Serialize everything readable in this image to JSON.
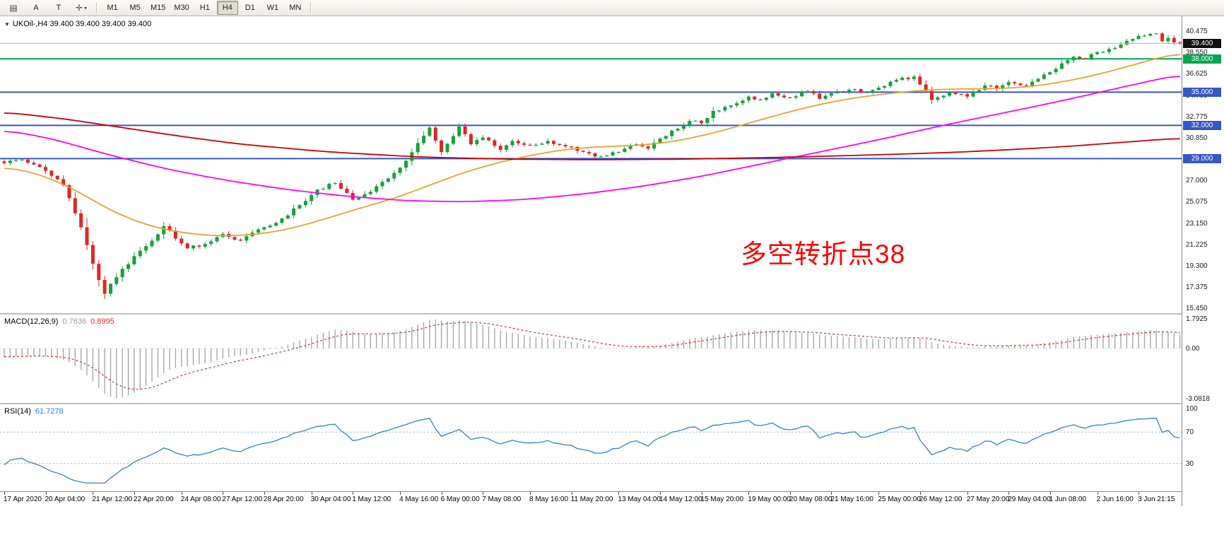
{
  "toolbar": {
    "tools": [
      {
        "type": "icon",
        "name": "chart-list-icon",
        "glyph": "▤"
      },
      {
        "type": "button",
        "name": "font-tool",
        "label": "A"
      },
      {
        "type": "button",
        "name": "text-tool",
        "label": "T"
      },
      {
        "type": "icon_dropdown",
        "name": "crosshair-tool",
        "glyph": "✛",
        "caret": "▾"
      }
    ],
    "timeframes": [
      "M1",
      "M5",
      "M15",
      "M30",
      "H1",
      "H4",
      "D1",
      "W1",
      "MN"
    ],
    "active_timeframe": "H4"
  },
  "chart": {
    "collapse_icon": "▼",
    "symbol_ohlc": "UKOil-,H4 39.400 39.400 39.400 39.400",
    "annotation": {
      "text": "多空转折点38",
      "color": "#ff0000"
    },
    "price_axis_labels": [
      {
        "text": "40.475",
        "price": 40.475
      },
      {
        "text": "38.550",
        "price": 38.55
      },
      {
        "text": "36.625",
        "price": 36.625
      },
      {
        "text": "34.700",
        "price": 34.7
      },
      {
        "text": "32.775",
        "price": 32.775
      },
      {
        "text": "30.850",
        "price": 30.85
      },
      {
        "text": "27.000",
        "price": 27.0
      },
      {
        "text": "25.075",
        "price": 25.075
      },
      {
        "text": "23.150",
        "price": 23.15
      },
      {
        "text": "21.225",
        "price": 21.225
      },
      {
        "text": "19.300",
        "price": 19.3
      },
      {
        "text": "17.375",
        "price": 17.375
      },
      {
        "text": "15.450",
        "price": 15.45
      }
    ],
    "price_tags": [
      {
        "text": "39.400",
        "price": 39.4,
        "bg": "#111111"
      },
      {
        "text": "38.000",
        "price": 38.0,
        "bg": "#00a651"
      },
      {
        "text": "35.000",
        "price": 35.0,
        "bg": "#3556c8"
      },
      {
        "text": "32.000",
        "price": 32.0,
        "bg": "#3556c8"
      },
      {
        "text": "29.000",
        "price": 29.0,
        "bg": "#3556c8"
      }
    ],
    "hlines": [
      {
        "price": 39.4,
        "color": "#9cb6dc",
        "w": 1,
        "current": true
      },
      {
        "price": 38.0,
        "color": "#00a651",
        "w": 2
      },
      {
        "price": 35.0,
        "color": "#3556c8",
        "w": 2
      },
      {
        "price": 32.0,
        "color": "#3556c8",
        "w": 2
      },
      {
        "price": 29.0,
        "color": "#3556c8",
        "w": 2
      }
    ]
  },
  "chart_data": {
    "type": "candlestick",
    "symbol": "UKOil-",
    "timeframe": "H4",
    "bars": 200,
    "price_range": [
      15.05,
      41.85
    ],
    "candle_up_color": "#14a339",
    "candle_down_color": "#e02723",
    "close_keyframes": [
      [
        0,
        28.6
      ],
      [
        3,
        28.9
      ],
      [
        7,
        27.9
      ],
      [
        10,
        26.6
      ],
      [
        13,
        22.8
      ],
      [
        15,
        19.5
      ],
      [
        17,
        16.8
      ],
      [
        19,
        18.3
      ],
      [
        22,
        20.2
      ],
      [
        25,
        21.6
      ],
      [
        27,
        22.9
      ],
      [
        31,
        20.9
      ],
      [
        34,
        21.3
      ],
      [
        37,
        22.2
      ],
      [
        40,
        21.6
      ],
      [
        43,
        22.6
      ],
      [
        46,
        23.2
      ],
      [
        50,
        24.8
      ],
      [
        53,
        26.2
      ],
      [
        56,
        26.8
      ],
      [
        59,
        25.3
      ],
      [
        62,
        26.0
      ],
      [
        65,
        27.2
      ],
      [
        68,
        28.8
      ],
      [
        70,
        30.4
      ],
      [
        72,
        31.8
      ],
      [
        74,
        29.6
      ],
      [
        77,
        31.9
      ],
      [
        79,
        30.3
      ],
      [
        81,
        30.9
      ],
      [
        84,
        29.8
      ],
      [
        86,
        30.6
      ],
      [
        89,
        30.2
      ],
      [
        92,
        30.6
      ],
      [
        95,
        30.1
      ],
      [
        98,
        29.6
      ],
      [
        101,
        29.2
      ],
      [
        104,
        29.6
      ],
      [
        107,
        30.3
      ],
      [
        109,
        29.9
      ],
      [
        111,
        30.8
      ],
      [
        114,
        31.7
      ],
      [
        116,
        32.4
      ],
      [
        118,
        32.2
      ],
      [
        120,
        33.3
      ],
      [
        123,
        33.8
      ],
      [
        126,
        34.6
      ],
      [
        128,
        34.3
      ],
      [
        130,
        34.9
      ],
      [
        133,
        34.5
      ],
      [
        136,
        35.1
      ],
      [
        138,
        34.4
      ],
      [
        140,
        34.9
      ],
      [
        143,
        35.2
      ],
      [
        146,
        35.0
      ],
      [
        148,
        35.4
      ],
      [
        151,
        36.1
      ],
      [
        154,
        36.4
      ],
      [
        157,
        34.3
      ],
      [
        160,
        35.0
      ],
      [
        163,
        34.6
      ],
      [
        166,
        35.6
      ],
      [
        168,
        35.3
      ],
      [
        170,
        35.9
      ],
      [
        173,
        35.6
      ],
      [
        175,
        36.2
      ],
      [
        177,
        36.8
      ],
      [
        179,
        37.6
      ],
      [
        181,
        38.2
      ],
      [
        183,
        38.0
      ],
      [
        185,
        38.6
      ],
      [
        187,
        38.9
      ],
      [
        189,
        39.3
      ],
      [
        191,
        39.8
      ],
      [
        193,
        40.1
      ],
      [
        195,
        40.3
      ],
      [
        196,
        39.6
      ],
      [
        197,
        39.9
      ],
      [
        198,
        39.5
      ],
      [
        199,
        39.4
      ]
    ],
    "ma_lines": [
      {
        "name": "fast-ma",
        "color": "#eda131",
        "points": [
          [
            0,
            28.3
          ],
          [
            6,
            27.6
          ],
          [
            12,
            26.2
          ],
          [
            18,
            24.3
          ],
          [
            24,
            23.0
          ],
          [
            30,
            22.3
          ],
          [
            36,
            22.0
          ],
          [
            42,
            22.1
          ],
          [
            48,
            22.6
          ],
          [
            54,
            23.5
          ],
          [
            60,
            24.5
          ],
          [
            66,
            25.4
          ],
          [
            72,
            26.6
          ],
          [
            78,
            27.8
          ],
          [
            84,
            28.7
          ],
          [
            90,
            29.4
          ],
          [
            96,
            29.9
          ],
          [
            102,
            30.1
          ],
          [
            108,
            30.2
          ],
          [
            114,
            30.6
          ],
          [
            120,
            31.3
          ],
          [
            126,
            32.2
          ],
          [
            132,
            33.1
          ],
          [
            138,
            33.9
          ],
          [
            144,
            34.5
          ],
          [
            150,
            34.9
          ],
          [
            156,
            35.2
          ],
          [
            162,
            35.3
          ],
          [
            168,
            35.3
          ],
          [
            174,
            35.5
          ],
          [
            180,
            36.0
          ],
          [
            186,
            36.7
          ],
          [
            192,
            37.6
          ],
          [
            199,
            38.6
          ]
        ]
      },
      {
        "name": "medium-ma",
        "color": "#ff00ff",
        "points": [
          [
            0,
            31.6
          ],
          [
            8,
            30.8
          ],
          [
            18,
            29.3
          ],
          [
            28,
            28.0
          ],
          [
            38,
            27.0
          ],
          [
            48,
            26.2
          ],
          [
            58,
            25.6
          ],
          [
            68,
            25.2
          ],
          [
            78,
            25.1
          ],
          [
            88,
            25.3
          ],
          [
            98,
            25.8
          ],
          [
            108,
            26.5
          ],
          [
            118,
            27.4
          ],
          [
            128,
            28.5
          ],
          [
            138,
            29.6
          ],
          [
            148,
            30.7
          ],
          [
            158,
            31.9
          ],
          [
            168,
            33.0
          ],
          [
            178,
            34.1
          ],
          [
            188,
            35.3
          ],
          [
            199,
            36.6
          ]
        ]
      },
      {
        "name": "slow-ma",
        "color": "#d10000",
        "points": [
          [
            0,
            33.2
          ],
          [
            10,
            32.6
          ],
          [
            20,
            31.8
          ],
          [
            30,
            31.0
          ],
          [
            40,
            30.3
          ],
          [
            55,
            29.6
          ],
          [
            70,
            29.15
          ],
          [
            85,
            28.95
          ],
          [
            100,
            28.9
          ],
          [
            115,
            28.95
          ],
          [
            130,
            29.1
          ],
          [
            145,
            29.3
          ],
          [
            160,
            29.55
          ],
          [
            170,
            29.8
          ],
          [
            180,
            30.1
          ],
          [
            190,
            30.5
          ],
          [
            199,
            30.85
          ]
        ]
      }
    ],
    "macd": {
      "label": "MACD(12,26,9)",
      "value_main": "0.7636",
      "value_signal": "0.8995",
      "axis_max": "1.7925",
      "axis_zero": "0.00",
      "axis_min": "-3.0818",
      "range": [
        -3.0818,
        1.7925
      ],
      "hist_color": "#a8a8a8",
      "signal_color": "#e03030"
    },
    "rsi": {
      "label": "RSI(14)",
      "value": "61.7278",
      "axis_labels": [
        "100",
        "70",
        "30"
      ],
      "levels": [
        70,
        30
      ],
      "range": [
        0,
        100
      ],
      "line_color": "#2f84d6",
      "level_color": "#8eb4e3"
    },
    "time_labels": [
      {
        "text": "17 Apr 2020",
        "bar": 0
      },
      {
        "text": "20 Apr 04:00",
        "bar": 7
      },
      {
        "text": "21 Apr 12:00",
        "bar": 15
      },
      {
        "text": "22 Apr 20:00",
        "bar": 22
      },
      {
        "text": "24 Apr 08:00",
        "bar": 30
      },
      {
        "text": "27 Apr 12:00",
        "bar": 37
      },
      {
        "text": "28 Apr 20:00",
        "bar": 44
      },
      {
        "text": "30 Apr 04:00",
        "bar": 52
      },
      {
        "text": "1 May 12:00",
        "bar": 59
      },
      {
        "text": "4 May 16:00",
        "bar": 67
      },
      {
        "text": "6 May 00:00",
        "bar": 74
      },
      {
        "text": "7 May 08:00",
        "bar": 81
      },
      {
        "text": "8 May 16:00",
        "bar": 89
      },
      {
        "text": "11 May 20:00",
        "bar": 96
      },
      {
        "text": "13 May 04:00",
        "bar": 104
      },
      {
        "text": "14 May 12:00",
        "bar": 111
      },
      {
        "text": "15 May 20:00",
        "bar": 118
      },
      {
        "text": "19 May 00:00",
        "bar": 126
      },
      {
        "text": "20 May 08:00",
        "bar": 133
      },
      {
        "text": "21 May 16:00",
        "bar": 140
      },
      {
        "text": "25 May 00:00",
        "bar": 148
      },
      {
        "text": "26 May 12:00",
        "bar": 155
      },
      {
        "text": "27 May 20:00",
        "bar": 163
      },
      {
        "text": "29 May 04:00",
        "bar": 170
      },
      {
        "text": "1 Jun 08:00",
        "bar": 177
      },
      {
        "text": "2 Jun 16:00",
        "bar": 185
      },
      {
        "text": "3 Jun 21:15",
        "bar": 192
      }
    ]
  }
}
